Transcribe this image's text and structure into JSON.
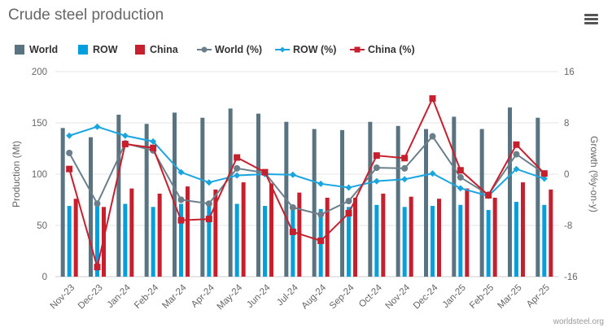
{
  "title": "Crude steel production",
  "credit": "worldsteel.org",
  "icons": {
    "menu": "hamburger-menu-icon"
  },
  "colors": {
    "world_bar": "#5a7380",
    "row_bar": "#00a0e0",
    "china_bar": "#c6202f",
    "world_line": "#6a7f8a",
    "row_line": "#19a6e0",
    "china_line": "#c6202f",
    "grid": "#e6e6e6",
    "axis_text": "#666666"
  },
  "chart_data": {
    "type": "bar",
    "categories": [
      "Nov-23",
      "Dec-23",
      "Jan-24",
      "Feb-24",
      "Mar-24",
      "Apr-24",
      "May-24",
      "Jun-24",
      "Jul-24",
      "Aug-24",
      "Sep-24",
      "Oct-24",
      "Nov-24",
      "Dec-24",
      "Jan-25",
      "Feb-25",
      "Mar-25",
      "Apr-25"
    ],
    "ylabel": "Production (Mt)",
    "ylabel_right": "Growth (%y-on-y)",
    "ylim": [
      0,
      200
    ],
    "yticks": [
      "0",
      "50",
      "100",
      "150",
      "200"
    ],
    "ylim_right": [
      -16,
      16
    ],
    "yticks_right": [
      "-16",
      "-8",
      "0",
      "8",
      "16"
    ],
    "grid": true,
    "legend_position": "top-left",
    "legend": [
      "World",
      "ROW",
      "China",
      "World (%)",
      "ROW (%)",
      "China (%)"
    ],
    "series": [
      {
        "name": "World",
        "type": "bar",
        "axis": "left",
        "values": [
          145,
          136,
          158,
          149,
          160,
          155,
          164,
          159,
          151,
          144,
          143,
          151,
          147,
          144,
          156,
          144,
          165,
          155
        ]
      },
      {
        "name": "ROW",
        "type": "bar",
        "axis": "left",
        "values": [
          69,
          71,
          71,
          68,
          71,
          70,
          71,
          69,
          69,
          66,
          68,
          70,
          68,
          69,
          70,
          65,
          73,
          70
        ]
      },
      {
        "name": "China",
        "type": "bar",
        "axis": "left",
        "values": [
          76,
          68,
          86,
          81,
          88,
          85,
          92,
          91,
          82,
          77,
          77,
          81,
          78,
          76,
          86,
          77,
          92,
          85
        ]
      },
      {
        "name": "World (%)",
        "type": "line",
        "axis": "right",
        "values": [
          3.3,
          -4.6,
          4.8,
          3.7,
          -4.0,
          -4.6,
          0.9,
          0.2,
          -5.2,
          -6.3,
          -4.2,
          1.0,
          0.9,
          5.9,
          -0.5,
          -3.2,
          3.1,
          0.1
        ]
      },
      {
        "name": "ROW (%)",
        "type": "line",
        "axis": "right",
        "values": [
          6.0,
          7.4,
          6.0,
          5.1,
          0.3,
          -1.3,
          -0.2,
          0.0,
          -0.1,
          -1.5,
          -2.1,
          -1.1,
          -0.8,
          0.1,
          -2.2,
          -3.4,
          0.8,
          -0.7
        ]
      },
      {
        "name": "China (%)",
        "type": "line",
        "axis": "right",
        "values": [
          0.8,
          -14.5,
          4.7,
          4.1,
          -7.2,
          -7.0,
          2.6,
          0.3,
          -9.0,
          -10.4,
          -6.1,
          2.9,
          2.5,
          11.8,
          0.6,
          -3.3,
          4.6,
          0.1
        ]
      }
    ]
  }
}
